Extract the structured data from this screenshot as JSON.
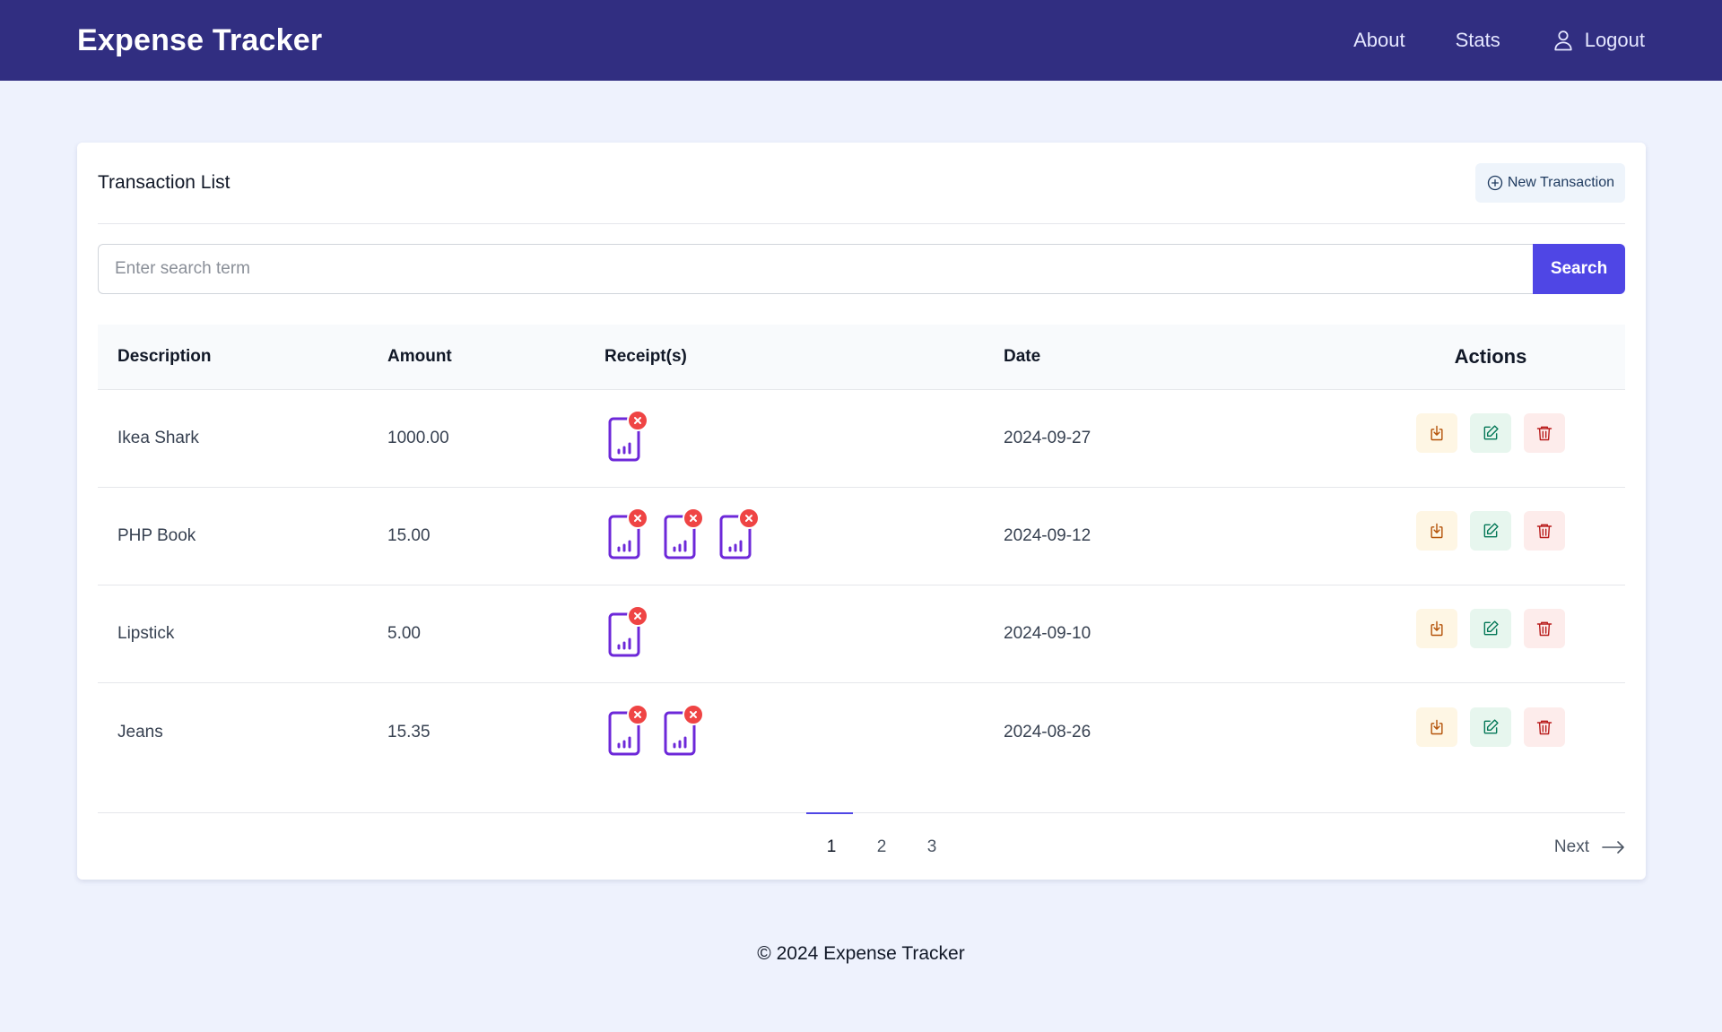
{
  "header": {
    "brand": "Expense Tracker",
    "nav": {
      "about": "About",
      "stats": "Stats",
      "logout": "Logout"
    }
  },
  "card": {
    "title": "Transaction List",
    "new_button": "New Transaction",
    "search": {
      "placeholder": "Enter search term",
      "value": "",
      "button": "Search"
    }
  },
  "table": {
    "headers": {
      "description": "Description",
      "amount": "Amount",
      "receipts": "Receipt(s)",
      "date": "Date",
      "actions": "Actions"
    },
    "rows": [
      {
        "description": "Ikea Shark",
        "amount": "1000.00",
        "receipt_count": 1,
        "date": "2024-09-27"
      },
      {
        "description": "PHP Book",
        "amount": "15.00",
        "receipt_count": 3,
        "date": "2024-09-12"
      },
      {
        "description": "Lipstick",
        "amount": "5.00",
        "receipt_count": 1,
        "date": "2024-09-10"
      },
      {
        "description": "Jeans",
        "amount": "15.35",
        "receipt_count": 2,
        "date": "2024-08-26"
      }
    ]
  },
  "pagination": {
    "pages": [
      "1",
      "2",
      "3"
    ],
    "current": "1",
    "next": "Next"
  },
  "footer": {
    "text": "© 2024 Expense Tracker"
  },
  "colors": {
    "header_bg": "#312e81",
    "accent": "#4f46e5",
    "page_bg": "#eef2fd",
    "receipt_icon": "#6d28d9",
    "remove_badge": "#ef4444",
    "download": "#b45309",
    "edit": "#047857",
    "delete": "#b91c1c"
  },
  "icons": {
    "logout": "user-icon",
    "new_transaction": "plus-circle-icon",
    "receipt": "document-chart-icon",
    "remove_receipt": "close-icon",
    "download": "download-icon",
    "edit": "edit-icon",
    "delete": "trash-icon",
    "next": "arrow-right-icon"
  }
}
